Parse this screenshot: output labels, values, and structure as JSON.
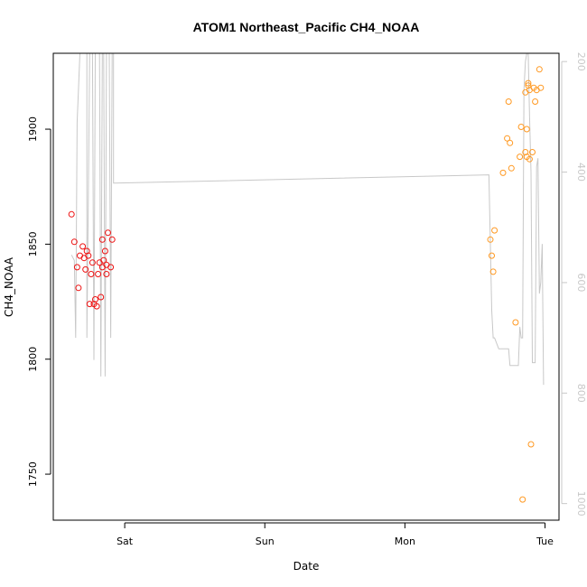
{
  "chart_data": {
    "type": "scatter",
    "title": "ATOM1 Northeast_Pacific CH4_NOAA",
    "xlabel": "Date",
    "ylabel": "CH4_NOAA",
    "x_tick_labels": [
      "Sat",
      "Sun",
      "Mon",
      "Tue"
    ],
    "x_ticks_days": [
      1,
      2,
      3,
      4
    ],
    "xlim_days": [
      0.49,
      4.1
    ],
    "ylim": [
      1730,
      1933
    ],
    "y_ticks": [
      1750,
      1800,
      1850,
      1900
    ],
    "secondary_axis": {
      "ticks": [
        200,
        400,
        600,
        800,
        1000
      ],
      "range": [
        185,
        1030
      ],
      "reversed": true,
      "color": "#c8c8c8"
    },
    "grid": false,
    "series": [
      {
        "color": "#ee1111",
        "points": [
          [
            0.62,
            1863
          ],
          [
            0.64,
            1851
          ],
          [
            0.66,
            1840
          ],
          [
            0.67,
            1831
          ],
          [
            0.68,
            1845
          ],
          [
            0.7,
            1849
          ],
          [
            0.71,
            1844
          ],
          [
            0.72,
            1839
          ],
          [
            0.73,
            1847
          ],
          [
            0.74,
            1845
          ],
          [
            0.75,
            1824
          ],
          [
            0.76,
            1837
          ],
          [
            0.77,
            1842
          ],
          [
            0.78,
            1824
          ],
          [
            0.79,
            1826
          ],
          [
            0.8,
            1823
          ],
          [
            0.81,
            1837
          ],
          [
            0.82,
            1842
          ],
          [
            0.83,
            1827
          ],
          [
            0.84,
            1840
          ],
          [
            0.84,
            1852
          ],
          [
            0.85,
            1843
          ],
          [
            0.86,
            1847
          ],
          [
            0.87,
            1841
          ],
          [
            0.87,
            1837
          ],
          [
            0.88,
            1855
          ],
          [
            0.9,
            1840
          ],
          [
            0.91,
            1852
          ]
        ]
      },
      {
        "color": "#ff9922",
        "points": [
          [
            3.61,
            1852
          ],
          [
            3.62,
            1845
          ],
          [
            3.63,
            1838
          ],
          [
            3.64,
            1856
          ],
          [
            3.7,
            1881
          ],
          [
            3.73,
            1896
          ],
          [
            3.74,
            1912
          ],
          [
            3.75,
            1894
          ],
          [
            3.76,
            1883
          ],
          [
            3.79,
            1816
          ],
          [
            3.82,
            1888
          ],
          [
            3.83,
            1901
          ],
          [
            3.86,
            1890
          ],
          [
            3.86,
            1916
          ],
          [
            3.87,
            1888
          ],
          [
            3.87,
            1900
          ],
          [
            3.88,
            1919
          ],
          [
            3.88,
            1920
          ],
          [
            3.89,
            1887
          ],
          [
            3.89,
            1917
          ],
          [
            3.9,
            1763
          ],
          [
            3.91,
            1890
          ],
          [
            3.92,
            1918
          ],
          [
            3.93,
            1912
          ],
          [
            3.94,
            1917
          ],
          [
            3.96,
            1926
          ],
          [
            3.97,
            1918
          ],
          [
            3.84,
            1739
          ]
        ]
      }
    ],
    "background_line": {
      "color": "#c8c8c8",
      "axis": "secondary",
      "points": [
        [
          0.62,
          550
        ],
        [
          0.64,
          560
        ],
        [
          0.65,
          700
        ],
        [
          0.66,
          310
        ],
        [
          0.67,
          250
        ],
        [
          0.68,
          185
        ],
        [
          0.7,
          185
        ],
        [
          0.71,
          185
        ],
        [
          0.72,
          185
        ],
        [
          0.73,
          185
        ],
        [
          0.73,
          700
        ],
        [
          0.74,
          450
        ],
        [
          0.75,
          185
        ],
        [
          0.76,
          185
        ],
        [
          0.77,
          185
        ],
        [
          0.78,
          740
        ],
        [
          0.79,
          185
        ],
        [
          0.8,
          185
        ],
        [
          0.81,
          185
        ],
        [
          0.82,
          185
        ],
        [
          0.83,
          770
        ],
        [
          0.84,
          185
        ],
        [
          0.85,
          185
        ],
        [
          0.86,
          770
        ],
        [
          0.87,
          185
        ],
        [
          0.88,
          185
        ],
        [
          0.89,
          185
        ],
        [
          0.9,
          700
        ],
        [
          0.91,
          185
        ],
        [
          0.92,
          185
        ],
        [
          0.92,
          420
        ],
        [
          3.6,
          405
        ],
        [
          3.62,
          650
        ],
        [
          3.63,
          700
        ],
        [
          3.64,
          700
        ],
        [
          3.67,
          720
        ],
        [
          3.7,
          720
        ],
        [
          3.72,
          720
        ],
        [
          3.74,
          720
        ],
        [
          3.75,
          750
        ],
        [
          3.78,
          750
        ],
        [
          3.8,
          750
        ],
        [
          3.81,
          750
        ],
        [
          3.82,
          680
        ],
        [
          3.83,
          700
        ],
        [
          3.84,
          700
        ],
        [
          3.85,
          250
        ],
        [
          3.86,
          200
        ],
        [
          3.87,
          185
        ],
        [
          3.88,
          185
        ],
        [
          3.89,
          300
        ],
        [
          3.9,
          400
        ],
        [
          3.91,
          745
        ],
        [
          3.93,
          745
        ],
        [
          3.94,
          390
        ],
        [
          3.95,
          375
        ],
        [
          3.96,
          620
        ],
        [
          3.97,
          600
        ],
        [
          3.98,
          530
        ],
        [
          3.99,
          785
        ]
      ]
    }
  }
}
